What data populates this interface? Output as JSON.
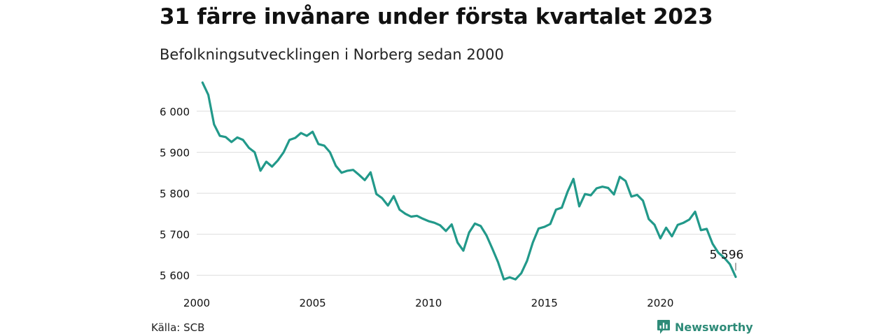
{
  "title": "31 färre invånare under första kvartalet 2023",
  "subtitle": "Befolkningsutvecklingen i Norberg sedan 2000",
  "source": "Källa: SCB",
  "brand": {
    "name": "Newsworthy",
    "icon": "newsworthy-logo-icon",
    "color": "#2e8b78"
  },
  "chart_data": {
    "type": "line",
    "title": "31 färre invånare under första kvartalet 2023",
    "subtitle": "Befolkningsutvecklingen i Norberg sedan 2000",
    "xlabel": "",
    "ylabel": "",
    "xlim": [
      2000,
      2023.25
    ],
    "ylim": [
      5585,
      6075
    ],
    "x_ticks": [
      2000,
      2005,
      2010,
      2015,
      2020
    ],
    "y_ticks": [
      5600,
      5700,
      5800,
      5900,
      6000
    ],
    "y_tick_labels": [
      "5 600",
      "5 700",
      "5 800",
      "5 900",
      "6 000"
    ],
    "grid": true,
    "line_color": "#22998a",
    "series": [
      {
        "x": [
          2000.25,
          2000.5,
          2000.75,
          2001.0,
          2001.25,
          2001.5,
          2001.75,
          2002.0,
          2002.25,
          2002.5,
          2002.75,
          2003.0,
          2003.25,
          2003.5,
          2003.75,
          2004.0,
          2004.25,
          2004.5,
          2004.75,
          2005.0,
          2005.25,
          2005.5,
          2005.75,
          2006.0,
          2006.25,
          2006.5,
          2006.75,
          2007.0,
          2007.25,
          2007.5,
          2007.75,
          2008.0,
          2008.25,
          2008.5,
          2008.75,
          2009.0,
          2009.25,
          2009.5,
          2009.75,
          2010.0,
          2010.25,
          2010.5,
          2010.75,
          2011.0,
          2011.25,
          2011.5,
          2011.75,
          2012.0,
          2012.25,
          2012.5,
          2012.75,
          2013.0,
          2013.25,
          2013.5,
          2013.75,
          2014.0,
          2014.25,
          2014.5,
          2014.75,
          2015.0,
          2015.25,
          2015.5,
          2015.75,
          2016.0,
          2016.25,
          2016.5,
          2016.75,
          2017.0,
          2017.25,
          2017.5,
          2017.75,
          2018.0,
          2018.25,
          2018.5,
          2018.75,
          2019.0,
          2019.25,
          2019.5,
          2019.75,
          2020.0,
          2020.25,
          2020.5,
          2020.75,
          2021.0,
          2021.25,
          2021.5,
          2021.75,
          2022.0,
          2022.25,
          2022.5,
          2022.75,
          2023.0,
          2023.25
        ],
        "y": [
          6070,
          6040,
          5968,
          5940,
          5937,
          5925,
          5936,
          5930,
          5911,
          5900,
          5855,
          5877,
          5865,
          5880,
          5900,
          5930,
          5935,
          5947,
          5940,
          5950,
          5920,
          5916,
          5900,
          5867,
          5850,
          5855,
          5857,
          5845,
          5832,
          5851,
          5798,
          5788,
          5770,
          5793,
          5760,
          5750,
          5743,
          5745,
          5738,
          5732,
          5728,
          5722,
          5708,
          5724,
          5680,
          5660,
          5704,
          5726,
          5720,
          5697,
          5665,
          5632,
          5590,
          5595,
          5590,
          5605,
          5635,
          5680,
          5714,
          5718,
          5725,
          5760,
          5765,
          5804,
          5835,
          5768,
          5798,
          5795,
          5812,
          5816,
          5813,
          5797,
          5840,
          5830,
          5792,
          5796,
          5782,
          5737,
          5723,
          5690,
          5716,
          5695,
          5723,
          5728,
          5736,
          5755,
          5710,
          5713,
          5677,
          5655,
          5643,
          5627,
          5596
        ]
      }
    ],
    "annotation": {
      "x": 2023.25,
      "y": 5596,
      "label": "5 596"
    }
  }
}
